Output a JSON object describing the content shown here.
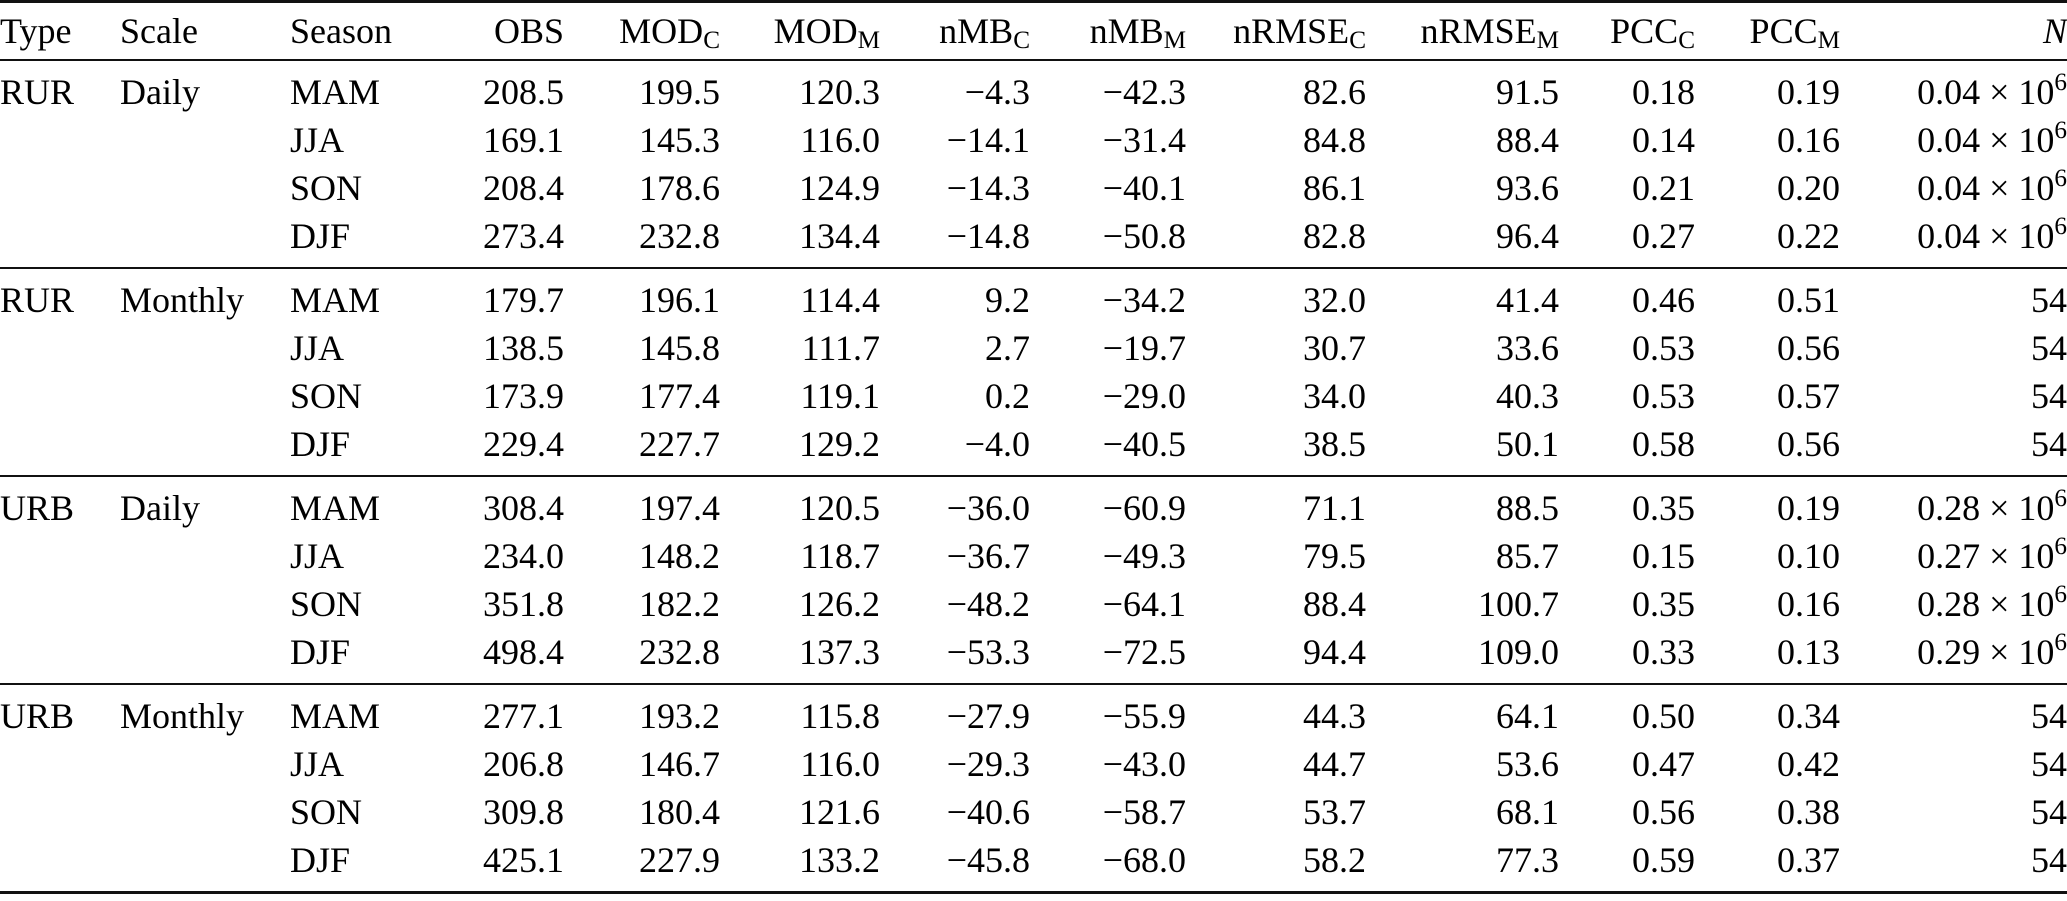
{
  "table": {
    "name": "seasonal-model-evaluation-statistics",
    "headers": [
      {
        "label": "Type",
        "sub": "",
        "align": "left"
      },
      {
        "label": "Scale",
        "sub": "",
        "align": "left"
      },
      {
        "label": "Season",
        "sub": "",
        "align": "left"
      },
      {
        "label": "OBS",
        "sub": "",
        "align": "num"
      },
      {
        "label": "MOD",
        "sub": "C",
        "align": "num"
      },
      {
        "label": "MOD",
        "sub": "M",
        "align": "num"
      },
      {
        "label": "nMB",
        "sub": "C",
        "align": "num"
      },
      {
        "label": "nMB",
        "sub": "M",
        "align": "num"
      },
      {
        "label": "nRMSE",
        "sub": "C",
        "align": "num"
      },
      {
        "label": "nRMSE",
        "sub": "M",
        "align": "num"
      },
      {
        "label": "PCC",
        "sub": "C",
        "align": "num"
      },
      {
        "label": "PCC",
        "sub": "M",
        "align": "num"
      },
      {
        "label": "N",
        "sub": "",
        "align": "num",
        "italic": true
      }
    ],
    "groups": [
      {
        "type": "RUR",
        "scale": "Daily",
        "rows": [
          {
            "season": "MAM",
            "values": [
              "208.5",
              "199.5",
              "120.3",
              "−4.3",
              "−42.3",
              "82.6",
              "91.5",
              "0.18",
              "0.19"
            ],
            "n": "0.04 × 10^6"
          },
          {
            "season": "JJA",
            "values": [
              "169.1",
              "145.3",
              "116.0",
              "−14.1",
              "−31.4",
              "84.8",
              "88.4",
              "0.14",
              "0.16"
            ],
            "n": "0.04 × 10^6"
          },
          {
            "season": "SON",
            "values": [
              "208.4",
              "178.6",
              "124.9",
              "−14.3",
              "−40.1",
              "86.1",
              "93.6",
              "0.21",
              "0.20"
            ],
            "n": "0.04 × 10^6"
          },
          {
            "season": "DJF",
            "values": [
              "273.4",
              "232.8",
              "134.4",
              "−14.8",
              "−50.8",
              "82.8",
              "96.4",
              "0.27",
              "0.22"
            ],
            "n": "0.04 × 10^6"
          }
        ]
      },
      {
        "type": "RUR",
        "scale": "Monthly",
        "rows": [
          {
            "season": "MAM",
            "values": [
              "179.7",
              "196.1",
              "114.4",
              "9.2",
              "−34.2",
              "32.0",
              "41.4",
              "0.46",
              "0.51"
            ],
            "n": "54"
          },
          {
            "season": "JJA",
            "values": [
              "138.5",
              "145.8",
              "111.7",
              "2.7",
              "−19.7",
              "30.7",
              "33.6",
              "0.53",
              "0.56"
            ],
            "n": "54"
          },
          {
            "season": "SON",
            "values": [
              "173.9",
              "177.4",
              "119.1",
              "0.2",
              "−29.0",
              "34.0",
              "40.3",
              "0.53",
              "0.57"
            ],
            "n": "54"
          },
          {
            "season": "DJF",
            "values": [
              "229.4",
              "227.7",
              "129.2",
              "−4.0",
              "−40.5",
              "38.5",
              "50.1",
              "0.58",
              "0.56"
            ],
            "n": "54"
          }
        ]
      },
      {
        "type": "URB",
        "scale": "Daily",
        "rows": [
          {
            "season": "MAM",
            "values": [
              "308.4",
              "197.4",
              "120.5",
              "−36.0",
              "−60.9",
              "71.1",
              "88.5",
              "0.35",
              "0.19"
            ],
            "n": "0.28 × 10^6"
          },
          {
            "season": "JJA",
            "values": [
              "234.0",
              "148.2",
              "118.7",
              "−36.7",
              "−49.3",
              "79.5",
              "85.7",
              "0.15",
              "0.10"
            ],
            "n": "0.27 × 10^6"
          },
          {
            "season": "SON",
            "values": [
              "351.8",
              "182.2",
              "126.2",
              "−48.2",
              "−64.1",
              "88.4",
              "100.7",
              "0.35",
              "0.16"
            ],
            "n": "0.28 × 10^6"
          },
          {
            "season": "DJF",
            "values": [
              "498.4",
              "232.8",
              "137.3",
              "−53.3",
              "−72.5",
              "94.4",
              "109.0",
              "0.33",
              "0.13"
            ],
            "n": "0.29 × 10^6"
          }
        ]
      },
      {
        "type": "URB",
        "scale": "Monthly",
        "rows": [
          {
            "season": "MAM",
            "values": [
              "277.1",
              "193.2",
              "115.8",
              "−27.9",
              "−55.9",
              "44.3",
              "64.1",
              "0.50",
              "0.34"
            ],
            "n": "54"
          },
          {
            "season": "JJA",
            "values": [
              "206.8",
              "146.7",
              "116.0",
              "−29.3",
              "−43.0",
              "44.7",
              "53.6",
              "0.47",
              "0.42"
            ],
            "n": "54"
          },
          {
            "season": "SON",
            "values": [
              "309.8",
              "180.4",
              "121.6",
              "−40.6",
              "−58.7",
              "53.7",
              "68.1",
              "0.56",
              "0.38"
            ],
            "n": "54"
          },
          {
            "season": "DJF",
            "values": [
              "425.1",
              "227.9",
              "133.2",
              "−45.8",
              "−68.0",
              "58.2",
              "77.3",
              "0.59",
              "0.37"
            ],
            "n": "54"
          }
        ]
      }
    ]
  }
}
